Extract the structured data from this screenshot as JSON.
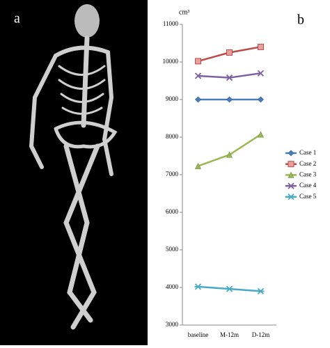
{
  "panel_labels": [
    "a",
    "b"
  ],
  "chart_data": {
    "type": "line",
    "y_unit": "cm³",
    "categories": [
      "baseline",
      "M-12m",
      "D-12m"
    ],
    "series": [
      {
        "name": "Case 1",
        "color": "#4a7ebb",
        "marker": "diamond",
        "values": [
          9000,
          9000,
          9000
        ]
      },
      {
        "name": "Case 2",
        "color": "#be4b48",
        "marker": "square",
        "values": [
          10020,
          10250,
          10400
        ]
      },
      {
        "name": "Case 3",
        "color": "#98b954",
        "marker": "triangle",
        "values": [
          7230,
          7530,
          8070
        ]
      },
      {
        "name": "Case 4",
        "color": "#7d60a0",
        "marker": "x",
        "values": [
          9630,
          9580,
          9700
        ]
      },
      {
        "name": "Case 5",
        "color": "#46aac5",
        "marker": "star",
        "values": [
          4020,
          3960,
          3900
        ]
      }
    ],
    "ylim": [
      3000,
      11000
    ],
    "yticks": [
      3000,
      4000,
      5000,
      6000,
      7000,
      8000,
      9000,
      10000,
      11000
    ],
    "grid": false,
    "legend": "right"
  }
}
